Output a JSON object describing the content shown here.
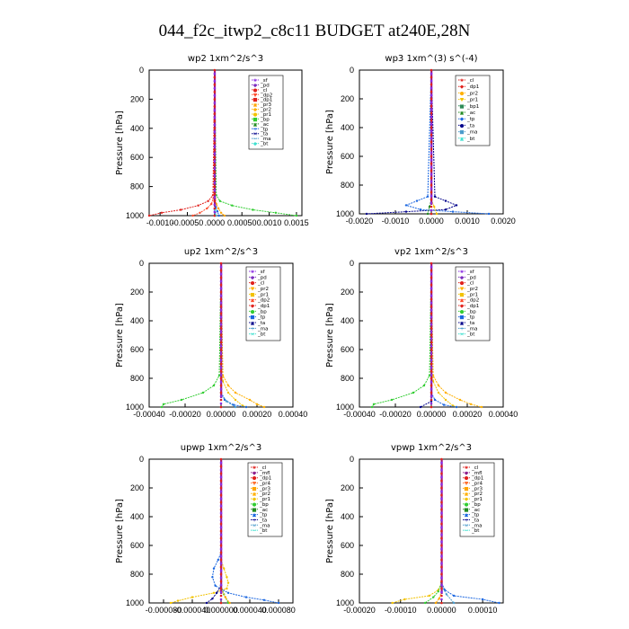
{
  "title": "044_f2c_itwp2_c8c11  BUDGET at240E,28N",
  "colors": {
    "sf": "#8a2be2",
    "pd": "#7b2cbf",
    "cl": "#e0201c",
    "dp2": "#ff4d2e",
    "dp1": "#e0201c",
    "pr3": "#ffa500",
    "pr2": "#ffb000",
    "pr1": "#f2c200",
    "bp": "#32cd32",
    "ac": "#228b22",
    "tp": "#1a66e0",
    "ta": "#00008b",
    "ma": "#4a9ccc",
    "bt": "#40e0d0",
    "mfl": "#8b1a8b",
    "pr4": "#ff7030",
    "bp1": "#2e8b57"
  },
  "chart_data": [
    {
      "type": "line",
      "title": "wp2   1xm^2/s^3",
      "ylabel": "Pressure [hPa]",
      "xlim": [
        -0.0012,
        0.0016
      ],
      "ylim": [
        1000,
        0
      ],
      "xticks": [
        -0.001,
        -0.0005,
        0.0,
        0.0005,
        0.001,
        0.0015
      ],
      "xtick_labels": [
        "-0.0010",
        "-0.00050",
        ".0000",
        "0.00050",
        "0.0010",
        "0.0015"
      ],
      "yticks": [
        0,
        200,
        400,
        600,
        800,
        1000
      ],
      "ytick_labels": [
        "0",
        "200",
        "400",
        "600",
        "800",
        "1000"
      ],
      "legend_entries": [
        "_sf",
        "_pd",
        "_cl",
        "_dp2",
        "_dp1",
        "_pr3",
        "_pr2",
        "_pr1",
        "_bp",
        "_ac",
        "_tp",
        "_ta",
        "_ma",
        "_bt"
      ],
      "series": [
        {
          "name": "_bp",
          "color_key": "bp",
          "p": [
            860,
            900,
            930,
            960,
            980,
            1000
          ],
          "v": [
            3e-05,
            0.0001,
            0.00032,
            0.0007,
            0.00112,
            0.0015
          ]
        },
        {
          "name": "_cl",
          "color_key": "cl",
          "p": [
            860,
            900,
            930,
            960,
            980,
            1000
          ],
          "v": [
            -3e-05,
            -0.00012,
            -0.0003,
            -0.00062,
            -0.00097,
            -0.0012
          ]
        },
        {
          "name": "_dp2",
          "color_key": "dp2",
          "p": [
            880,
            920,
            950,
            980,
            1000
          ],
          "v": [
            -2e-05,
            -6e-05,
            -0.00014,
            -0.00027,
            -0.0004
          ]
        },
        {
          "name": "_pr3",
          "color_key": "pr3",
          "p": [
            880,
            920,
            950,
            980,
            1000
          ],
          "v": [
            1e-05,
            3e-05,
            7e-05,
            0.00012,
            0.00018
          ]
        },
        {
          "name": "_tp",
          "color_key": "tp",
          "p": [
            900,
            940,
            970,
            1000
          ],
          "v": [
            0.0,
            2e-05,
            5e-05,
            8e-05
          ]
        },
        {
          "name": "_sf",
          "color_key": "sf",
          "p": [
            960,
            980,
            1000
          ],
          "v": [
            0.0,
            1e-05,
            2e-05
          ]
        },
        {
          "name": "_bt",
          "color_key": "bt",
          "p": [
            900,
            960,
            1000
          ],
          "v": [
            0.0,
            1e-05,
            2e-05
          ]
        }
      ]
    },
    {
      "type": "line",
      "title": "wp3   1xm^(3) s^(-4)",
      "ylabel": "Pressure [hPa]",
      "xlim": [
        -0.002,
        0.002
      ],
      "ylim": [
        1000,
        0
      ],
      "xticks": [
        -0.002,
        -0.001,
        0.0,
        0.001,
        0.002
      ],
      "xtick_labels": [
        "-0.0020",
        "-0.0010",
        "0.0000",
        "0.0010",
        "0.0020"
      ],
      "yticks": [
        0,
        200,
        400,
        600,
        800,
        1000
      ],
      "ytick_labels": [
        "0",
        "200",
        "400",
        "600",
        "800",
        "1000"
      ],
      "legend_entries": [
        "_cl",
        "_dp1",
        "_pr2",
        "_pr1",
        "_bp1",
        "_ac",
        "_tp",
        "_ta",
        "_ma",
        "_bt"
      ],
      "series": [
        {
          "name": "_ta",
          "color_key": "ta",
          "p": [
            880,
            910,
            940,
            970,
            985,
            1000
          ],
          "v": [
            0.0001,
            0.0004,
            0.0007,
            0.0004,
            -0.0007,
            -0.0018
          ]
        },
        {
          "name": "_tp",
          "color_key": "tp",
          "p": [
            880,
            910,
            940,
            970,
            985,
            1000
          ],
          "v": [
            -0.0001,
            -0.0004,
            -0.0007,
            -0.0003,
            0.0006,
            0.0016
          ]
        },
        {
          "name": "_pr1",
          "color_key": "pr1",
          "p": [
            900,
            950,
            1000
          ],
          "v": [
            0.0,
            8e-05,
            0.00015
          ]
        },
        {
          "name": "_ac",
          "color_key": "ac",
          "p": [
            900,
            950,
            1000
          ],
          "v": [
            0.0,
            -5e-05,
            -0.0001
          ]
        }
      ]
    },
    {
      "type": "line",
      "title": "up2   1xm^2/s^3",
      "ylabel": "Pressure [hPa]",
      "xlim": [
        -0.0004,
        0.0004
      ],
      "ylim": [
        1000,
        0
      ],
      "xticks": [
        -0.0004,
        -0.0002,
        0.0,
        0.0002,
        0.0004
      ],
      "xtick_labels": [
        "-0.00040",
        "-0.00020",
        "0.00000",
        "0.00020",
        "0.00040"
      ],
      "yticks": [
        0,
        200,
        400,
        600,
        800,
        1000
      ],
      "ytick_labels": [
        "0",
        "200",
        "400",
        "600",
        "800",
        "1000"
      ],
      "legend_entries": [
        "_sf",
        "_pd",
        "_cl",
        "_pr2",
        "_pr1",
        "_dp2",
        "_dp1",
        "_bp",
        "_tp",
        "_ta",
        "_ma",
        "_bt"
      ],
      "series": [
        {
          "name": "_bp",
          "color_key": "bp",
          "p": [
            780,
            850,
            900,
            950,
            980,
            1000
          ],
          "v": [
            -1e-05,
            -4e-05,
            -0.0001,
            -0.00022,
            -0.00032,
            -0.00033
          ]
        },
        {
          "name": "_pr2",
          "color_key": "pr2",
          "p": [
            780,
            850,
            900,
            950,
            980,
            1000
          ],
          "v": [
            1e-05,
            4e-05,
            8e-05,
            0.00016,
            0.0002,
            0.00024
          ]
        },
        {
          "name": "_pr1",
          "color_key": "pr1",
          "p": [
            820,
            900,
            950,
            990,
            1000
          ],
          "v": [
            1e-05,
            4e-05,
            8e-05,
            0.00012,
            0.00014
          ]
        },
        {
          "name": "_tp",
          "color_key": "tp",
          "p": [
            900,
            950,
            985,
            1000
          ],
          "v": [
            0.0,
            2e-05,
            7e-05,
            0.00014
          ]
        },
        {
          "name": "_ma",
          "color_key": "ma",
          "p": [
            900,
            960,
            1000
          ],
          "v": [
            0.0,
            3e-05,
            8e-05
          ]
        }
      ]
    },
    {
      "type": "line",
      "title": "vp2   1xm^2/s^3",
      "ylabel": "Pressure [hPa]",
      "xlim": [
        -0.0004,
        0.0004
      ],
      "ylim": [
        1000,
        0
      ],
      "xticks": [
        -0.0004,
        -0.0002,
        0.0,
        0.0002,
        0.0004
      ],
      "xtick_labels": [
        "-0.00040",
        "-0.00020",
        "0.00000",
        "0.00020",
        "0.00040"
      ],
      "yticks": [
        0,
        200,
        400,
        600,
        800,
        1000
      ],
      "ytick_labels": [
        "0",
        "200",
        "400",
        "600",
        "800",
        "1000"
      ],
      "legend_entries": [
        "_sf",
        "_pd",
        "_cl",
        "_pr2",
        "_pr1",
        "_dp2",
        "_dp1",
        "_bp",
        "_tp",
        "_ta",
        "_ma",
        "_bt"
      ],
      "series": [
        {
          "name": "_bp",
          "color_key": "bp",
          "p": [
            780,
            850,
            900,
            950,
            980,
            1000
          ],
          "v": [
            -1e-05,
            -4e-05,
            -0.0001,
            -0.00022,
            -0.00032,
            -0.00033
          ]
        },
        {
          "name": "_pr2",
          "color_key": "pr2",
          "p": [
            780,
            850,
            900,
            950,
            980,
            1000
          ],
          "v": [
            1e-05,
            4e-05,
            8e-05,
            0.00016,
            0.00022,
            0.00028
          ]
        },
        {
          "name": "_pr1",
          "color_key": "pr1",
          "p": [
            820,
            900,
            950,
            990,
            1000
          ],
          "v": [
            1e-05,
            4e-05,
            8e-05,
            0.00012,
            0.00014
          ]
        },
        {
          "name": "_tp",
          "color_key": "tp",
          "p": [
            900,
            950,
            985,
            1000
          ],
          "v": [
            0.0,
            2e-05,
            7e-05,
            0.00014
          ]
        },
        {
          "name": "_ta",
          "color_key": "ta",
          "p": [
            960,
            1000
          ],
          "v": [
            0.0,
            -6e-05
          ]
        }
      ]
    },
    {
      "type": "line",
      "title": "upwp   1xm^2/s^3",
      "ylabel": "Pressure [hPa]",
      "xlim": [
        -0.0001,
        0.0001
      ],
      "ylim": [
        1000,
        0
      ],
      "xticks": [
        -8e-05,
        -4e-05,
        0.0,
        4e-05,
        8e-05
      ],
      "xtick_labels": [
        "-0.000080",
        "-0.000040",
        "0.000000",
        "0.000040",
        "0.000080"
      ],
      "yticks": [
        0,
        200,
        400,
        600,
        800,
        1000
      ],
      "ytick_labels": [
        "0",
        "200",
        "400",
        "600",
        "800",
        "1000"
      ],
      "legend_entries": [
        "_cl",
        "_mfl",
        "_dp1",
        "_pr4",
        "_pr3",
        "_pr2",
        "_pr1",
        "_bp",
        "_ac",
        "_tp",
        "_ta",
        "_ma",
        "_bt"
      ],
      "series": [
        {
          "name": "_pr1",
          "color_key": "pr1",
          "p": [
            700,
            760,
            820,
            860,
            900,
            930,
            960,
            985,
            1000
          ],
          "v": [
            0.0,
            4e-06,
            8e-06,
            1e-05,
            8e-06,
            -1e-05,
            -4e-05,
            -6e-05,
            -7e-05
          ]
        },
        {
          "name": "_tp",
          "color_key": "tp",
          "p": [
            650,
            700,
            760,
            820,
            880,
            930,
            960,
            980,
            1000
          ],
          "v": [
            0.0,
            -4e-06,
            -1e-05,
            -1.2e-05,
            -8e-06,
            1e-05,
            3.5e-05,
            6e-05,
            8e-05
          ]
        },
        {
          "name": "_ta",
          "color_key": "ta",
          "p": [
            880,
            930,
            970,
            1000
          ],
          "v": [
            0.0,
            -6e-06,
            -1.2e-05,
            -2e-05
          ]
        },
        {
          "name": "_bp",
          "color_key": "bp",
          "p": [
            880,
            940,
            1000
          ],
          "v": [
            0.0,
            4e-06,
            1e-05
          ]
        },
        {
          "name": "_pr3",
          "color_key": "pr3",
          "p": [
            900,
            960,
            1000
          ],
          "v": [
            0.0,
            6e-06,
            1.2e-05
          ]
        }
      ]
    },
    {
      "type": "line",
      "title": "vpwp   1xm^2/s^3",
      "ylabel": "Pressure [hPa]",
      "xlim": [
        -0.0002,
        0.00015
      ],
      "ylim": [
        1000,
        0
      ],
      "xticks": [
        -0.0002,
        -0.0001,
        0.0,
        0.0001
      ],
      "xtick_labels": [
        "-0.00020",
        "-0.00010",
        "0.00000",
        "0.00010"
      ],
      "yticks": [
        0,
        200,
        400,
        600,
        800,
        1000
      ],
      "ytick_labels": [
        "0",
        "200",
        "400",
        "600",
        "800",
        "1000"
      ],
      "legend_entries": [
        "_cl",
        "_mfl",
        "_dp1",
        "_pr4",
        "_pr3",
        "_pr2",
        "_pr1",
        "_bp",
        "_ac",
        "_tp",
        "_ta",
        "_ma",
        "_bt"
      ],
      "series": [
        {
          "name": "_pr1",
          "color_key": "pr1",
          "p": [
            860,
            910,
            950,
            975,
            1000
          ],
          "v": [
            0.0,
            -8e-06,
            -3e-05,
            -9e-05,
            -0.00012
          ]
        },
        {
          "name": "_tp",
          "color_key": "tp",
          "p": [
            860,
            910,
            950,
            975,
            1000
          ],
          "v": [
            0.0,
            8e-06,
            3e-05,
            0.0001,
            0.00014
          ]
        },
        {
          "name": "_bp",
          "color_key": "bp",
          "p": [
            860,
            920,
            960,
            1000
          ],
          "v": [
            0.0,
            -8e-06,
            -2e-05,
            -4e-05
          ]
        },
        {
          "name": "_ma",
          "color_key": "ma",
          "p": [
            880,
            940,
            1000
          ],
          "v": [
            0.0,
            1.2e-05,
            3e-05
          ]
        },
        {
          "name": "_pr3",
          "color_key": "pr3",
          "p": [
            920,
            970,
            1000
          ],
          "v": [
            0.0,
            -6e-06,
            -1.4e-05
          ]
        }
      ]
    }
  ]
}
